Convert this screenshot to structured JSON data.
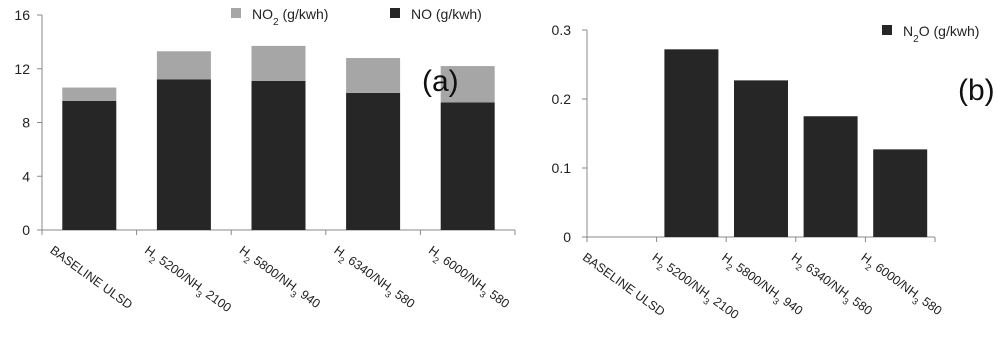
{
  "chart_data": [
    {
      "type": "bar",
      "stacked": true,
      "panel_label": "(a)",
      "categories": [
        {
          "base": "BASELINE  ULSD",
          "parts": [
            {
              "t": "BASELINE  ULSD"
            }
          ]
        },
        {
          "base": "H2  5200/NH3 2100",
          "parts": [
            {
              "t": "H"
            },
            {
              "t": "2",
              "sub": true
            },
            {
              "t": "  5200/NH"
            },
            {
              "t": "3",
              "sub": true
            },
            {
              "t": " 2100"
            }
          ]
        },
        {
          "base": "H2 5800/NH3 940",
          "parts": [
            {
              "t": "H"
            },
            {
              "t": "2",
              "sub": true
            },
            {
              "t": " 5800/NH"
            },
            {
              "t": "3",
              "sub": true
            },
            {
              "t": " 940"
            }
          ]
        },
        {
          "base": "H2  6340/NH3 580",
          "parts": [
            {
              "t": "H"
            },
            {
              "t": "2",
              "sub": true
            },
            {
              "t": "  6340/NH"
            },
            {
              "t": "3",
              "sub": true
            },
            {
              "t": " 580"
            }
          ]
        },
        {
          "base": "H2  6000/NH3 580",
          "parts": [
            {
              "t": "H"
            },
            {
              "t": "2",
              "sub": true
            },
            {
              "t": "  6000/NH"
            },
            {
              "t": "3",
              "sub": true
            },
            {
              "t": " 580"
            }
          ]
        }
      ],
      "series": [
        {
          "name": "NO (g/kwh)",
          "name_parts": [
            {
              "t": "NO (g/kwh)"
            }
          ],
          "color": "#262626",
          "values": [
            9.6,
            11.2,
            11.1,
            10.2,
            9.5
          ]
        },
        {
          "name": "NO2 (g/kwh)",
          "name_parts": [
            {
              "t": "NO"
            },
            {
              "t": "2",
              "sub": true
            },
            {
              "t": " (g/kwh)"
            }
          ],
          "color": "#a6a6a6",
          "values": [
            1.0,
            2.1,
            2.6,
            2.6,
            2.7
          ]
        }
      ],
      "ylim": [
        0,
        16
      ],
      "yticks": [
        "0",
        "4",
        "8",
        "12",
        "16"
      ],
      "legend_position": "top"
    },
    {
      "type": "bar",
      "panel_label": "(b)",
      "categories": [
        {
          "base": "BASELINE  ULSD",
          "parts": [
            {
              "t": "BASELINE  ULSD"
            }
          ]
        },
        {
          "base": "H2  5200/NH3 2100",
          "parts": [
            {
              "t": "H"
            },
            {
              "t": "2",
              "sub": true
            },
            {
              "t": "  5200/NH"
            },
            {
              "t": "3",
              "sub": true
            },
            {
              "t": " 2100"
            }
          ]
        },
        {
          "base": "H2  5800/NH3 940",
          "parts": [
            {
              "t": "H"
            },
            {
              "t": "2",
              "sub": true
            },
            {
              "t": "  5800/NH"
            },
            {
              "t": "3",
              "sub": true
            },
            {
              "t": " 940"
            }
          ]
        },
        {
          "base": "H2  6340/NH3 580",
          "parts": [
            {
              "t": "H"
            },
            {
              "t": "2",
              "sub": true
            },
            {
              "t": "  6340/NH"
            },
            {
              "t": "3",
              "sub": true
            },
            {
              "t": " 580"
            }
          ]
        },
        {
          "base": "H2  6000/NH3 580",
          "parts": [
            {
              "t": "H"
            },
            {
              "t": "2",
              "sub": true
            },
            {
              "t": "  6000/NH"
            },
            {
              "t": "3",
              "sub": true
            },
            {
              "t": " 580"
            }
          ]
        }
      ],
      "series": [
        {
          "name": "N2O (g/kwh)",
          "name_parts": [
            {
              "t": "N"
            },
            {
              "t": "2",
              "sub": true
            },
            {
              "t": "O (g/kwh)"
            }
          ],
          "color": "#262626",
          "values": [
            0,
            0.272,
            0.227,
            0.175,
            0.127
          ]
        }
      ],
      "ylim": [
        0,
        0.3
      ],
      "yticks": [
        "0",
        "0.1",
        "0.2",
        "0.3"
      ],
      "legend_position": "top-right"
    }
  ]
}
